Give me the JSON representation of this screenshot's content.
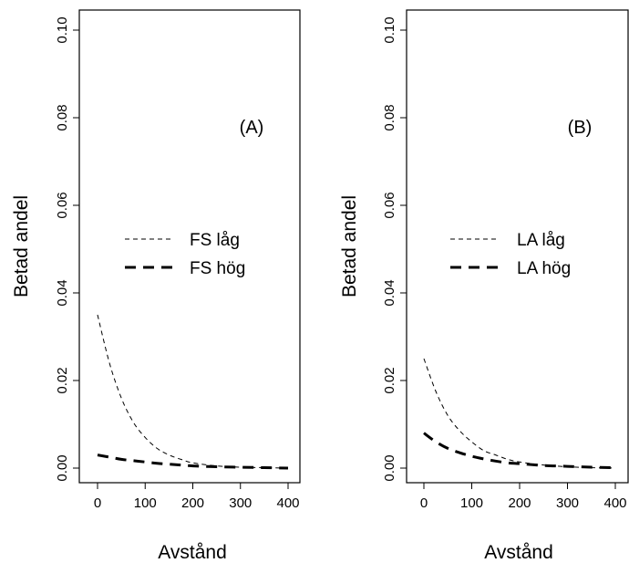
{
  "chart_data": [
    {
      "type": "line",
      "panel_label": "(A)",
      "title": "",
      "xlabel": "Avstånd",
      "ylabel": "Betad andel",
      "xlim": [
        0,
        400
      ],
      "ylim": [
        0,
        0.1
      ],
      "x_ticks": [
        "0",
        "100",
        "200",
        "300",
        "400"
      ],
      "y_ticks": [
        "0.00",
        "0.02",
        "0.04",
        "0.06",
        "0.08",
        "0.10"
      ],
      "legend_position": "center",
      "series": [
        {
          "name": "FS låg",
          "style": "thin-dashed",
          "x": [
            0,
            25,
            50,
            75,
            100,
            125,
            150,
            175,
            200,
            250,
            300,
            350,
            400
          ],
          "y": [
            0.035,
            0.024,
            0.016,
            0.0105,
            0.007,
            0.0045,
            0.003,
            0.002,
            0.0012,
            0.0005,
            0.0002,
            0.0001,
            0.0
          ]
        },
        {
          "name": "FS hög",
          "style": "thick-dashed",
          "x": [
            0,
            25,
            50,
            75,
            100,
            125,
            150,
            175,
            200,
            250,
            300,
            350,
            400
          ],
          "y": [
            0.003,
            0.0025,
            0.002,
            0.0017,
            0.0014,
            0.0011,
            0.0009,
            0.0007,
            0.0005,
            0.0003,
            0.0002,
            0.0001,
            0.0
          ]
        }
      ]
    },
    {
      "type": "line",
      "panel_label": "(B)",
      "title": "",
      "xlabel": "Avstånd",
      "ylabel": "Betad andel",
      "xlim": [
        0,
        400
      ],
      "ylim": [
        0,
        0.1
      ],
      "x_ticks": [
        "0",
        "100",
        "200",
        "300",
        "400"
      ],
      "y_ticks": [
        "0.00",
        "0.02",
        "0.04",
        "0.06",
        "0.08",
        "0.10"
      ],
      "legend_position": "center",
      "series": [
        {
          "name": "LA låg",
          "style": "thin-dashed",
          "x": [
            0,
            25,
            50,
            75,
            100,
            125,
            150,
            175,
            200,
            250,
            300,
            350,
            400
          ],
          "y": [
            0.025,
            0.0175,
            0.012,
            0.0085,
            0.006,
            0.004,
            0.003,
            0.002,
            0.0014,
            0.0007,
            0.0003,
            0.0001,
            0.0
          ]
        },
        {
          "name": "LA hög",
          "style": "thick-dashed",
          "x": [
            0,
            25,
            50,
            75,
            100,
            125,
            150,
            175,
            200,
            250,
            300,
            350,
            400
          ],
          "y": [
            0.008,
            0.006,
            0.0045,
            0.0035,
            0.0027,
            0.0021,
            0.0016,
            0.0012,
            0.001,
            0.0006,
            0.0004,
            0.0002,
            0.0001
          ]
        }
      ]
    }
  ]
}
